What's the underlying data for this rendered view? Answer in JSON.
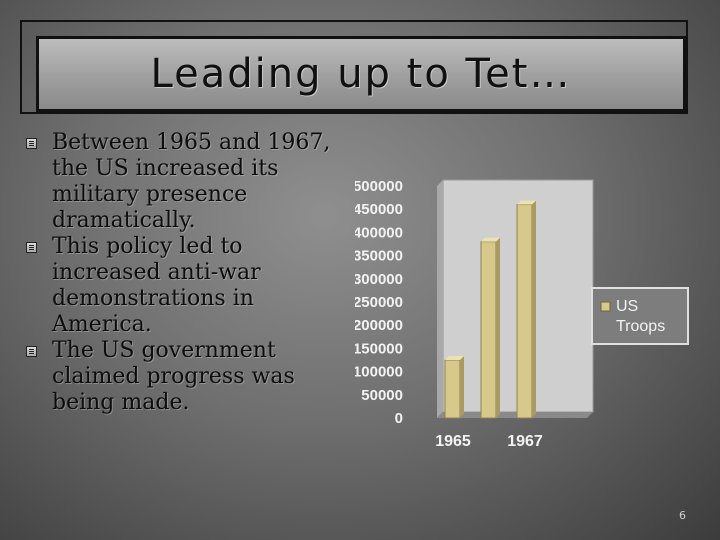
{
  "slide": {
    "title": "Leading up to Tet…",
    "bullets": [
      "Between 1965 and 1967, the US increased its military presence dramatically.",
      "This policy led to increased anti-war demonstrations in America.",
      "The US government claimed progress was being made."
    ],
    "page_number": "6"
  },
  "chart_data": {
    "type": "bar",
    "categories": [
      "1965",
      "1967"
    ],
    "series": [
      {
        "name": "US Troops",
        "values": [
          125000,
          380000
        ]
      },
      {
        "name": "",
        "values": [
          0,
          460000
        ]
      }
    ],
    "ylim": [
      0,
      500000
    ],
    "yticks": [
      "0",
      "50000",
      "100000",
      "150000",
      "200000",
      "250000",
      "300000",
      "350000",
      "400000",
      "450000",
      "500000"
    ],
    "legend": [
      {
        "label": "US Troops"
      }
    ],
    "legend_position": "right",
    "bar_color": "#d6c98a",
    "grid": false
  }
}
